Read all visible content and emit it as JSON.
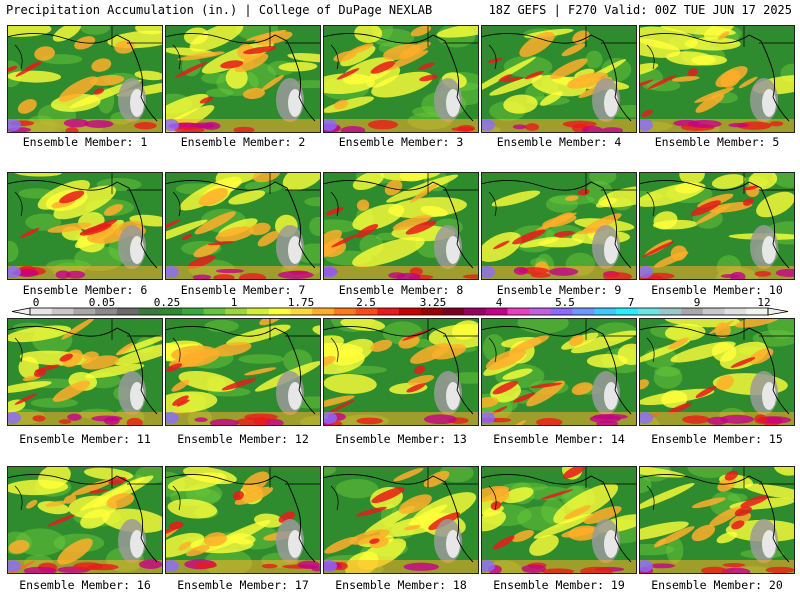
{
  "header": {
    "left_title": "Precipitation Accumulation (in.) | College of DuPage NEXLAB",
    "right_title": "18Z GEFS | F270 Valid: 00Z TUE JUN 17 2025"
  },
  "panels": [
    {
      "label": "Ensemble Member: 1"
    },
    {
      "label": "Ensemble Member: 2"
    },
    {
      "label": "Ensemble Member: 3"
    },
    {
      "label": "Ensemble Member: 4"
    },
    {
      "label": "Ensemble Member: 5"
    },
    {
      "label": "Ensemble Member: 6"
    },
    {
      "label": "Ensemble Member: 7"
    },
    {
      "label": "Ensemble Member: 8"
    },
    {
      "label": "Ensemble Member: 9"
    },
    {
      "label": "Ensemble Member: 10"
    },
    {
      "label": "Ensemble Member: 11"
    },
    {
      "label": "Ensemble Member: 12"
    },
    {
      "label": "Ensemble Member: 13"
    },
    {
      "label": "Ensemble Member: 14"
    },
    {
      "label": "Ensemble Member: 15"
    },
    {
      "label": "Ensemble Member: 16"
    },
    {
      "label": "Ensemble Member: 17"
    },
    {
      "label": "Ensemble Member: 18"
    },
    {
      "label": "Ensemble Member: 19"
    },
    {
      "label": "Ensemble Member: 20"
    }
  ],
  "colorbar": {
    "tick_labels": [
      "0",
      "0.05",
      "0.25",
      "1",
      "1.75",
      "2.5",
      "3.25",
      "4",
      "5.5",
      "7",
      "9",
      "12"
    ],
    "colors": [
      "#e6e6e6",
      "#c8c8c8",
      "#a8a8a8",
      "#8a8a8a",
      "#6a6a6a",
      "#3c7a3c",
      "#2e8b2e",
      "#3aa83a",
      "#66c43a",
      "#9ad83a",
      "#d0ee3a",
      "#ffff3a",
      "#ffd83a",
      "#ffae2a",
      "#ff7a1a",
      "#ff4a1a",
      "#e81a1a",
      "#c40000",
      "#9a0000",
      "#7a0020",
      "#9a0060",
      "#c4008a",
      "#e640c0",
      "#c060e6",
      "#8a6cff",
      "#6a9aff",
      "#40c8ff",
      "#2aeeff",
      "#6ae6e6",
      "#9ac8c8",
      "#a8a8a8",
      "#c8c8c8",
      "#e0e0e0",
      "#f2f2f2"
    ]
  },
  "map_colors": {
    "base_green": "#2e8b2e",
    "light_green": "#66c43a",
    "yellow": "#ffff3a",
    "orange": "#ffae2a",
    "red": "#e81a1a",
    "magenta": "#c4008a",
    "purple": "#8a6cff",
    "gray": "#9a9a9a",
    "white": "#f0f0f0",
    "border": "#000000"
  }
}
